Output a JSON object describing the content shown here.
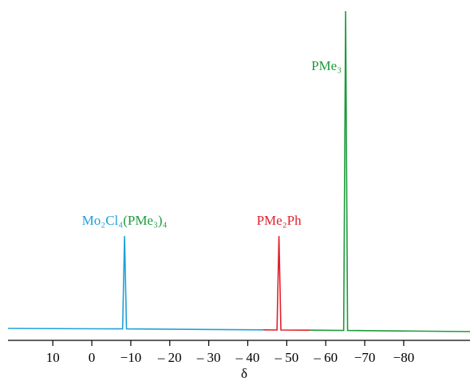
{
  "chart_data": {
    "type": "spectrum",
    "x_label": "δ",
    "xlim": [
      21.5,
      -97
    ],
    "ylim": [
      0,
      100
    ],
    "xticks": [
      10,
      0,
      {
        "value": -10,
        "label": "−10"
      },
      {
        "value": -20,
        "label": "– 20"
      },
      {
        "value": -30,
        "label": "– 30"
      },
      {
        "value": -40,
        "label": "– 40"
      },
      {
        "value": -50,
        "label": "– 50"
      },
      {
        "value": -60,
        "label": "– 60"
      },
      {
        "value": -70,
        "label": "−70"
      },
      {
        "value": -80,
        "label": "−80"
      }
    ],
    "series": [
      {
        "label_parts": [
          {
            "text": "Mo₂Cl₄",
            "color": "#1fa0d8"
          },
          {
            "text": "(PMe₃)₄",
            "color": "#1e9a3c"
          }
        ],
        "color": "#1fa0d8",
        "x": [
          21.5,
          -7.9,
          -8.4,
          -8.9,
          -44
        ],
        "values": [
          0.25,
          0.1,
          29.3,
          0.1,
          -0.2
        ]
      },
      {
        "label_parts": [
          {
            "text": "PMe₂Ph",
            "color": "#e0202c"
          }
        ],
        "color": "#e0202c",
        "x": [
          -44,
          -47.5,
          -48,
          -48.5,
          -56
        ],
        "values": [
          -0.2,
          -0.25,
          29.3,
          -0.25,
          -0.3
        ]
      },
      {
        "label_parts": [
          {
            "text": "PMe₃",
            "color": "#1e9a3c"
          }
        ],
        "color": "#1e9a3c",
        "x": [
          -56,
          -64.6,
          -65.1,
          -65.6,
          -97
        ],
        "values": [
          -0.3,
          -0.4,
          100,
          -0.4,
          -0.75
        ]
      }
    ]
  }
}
